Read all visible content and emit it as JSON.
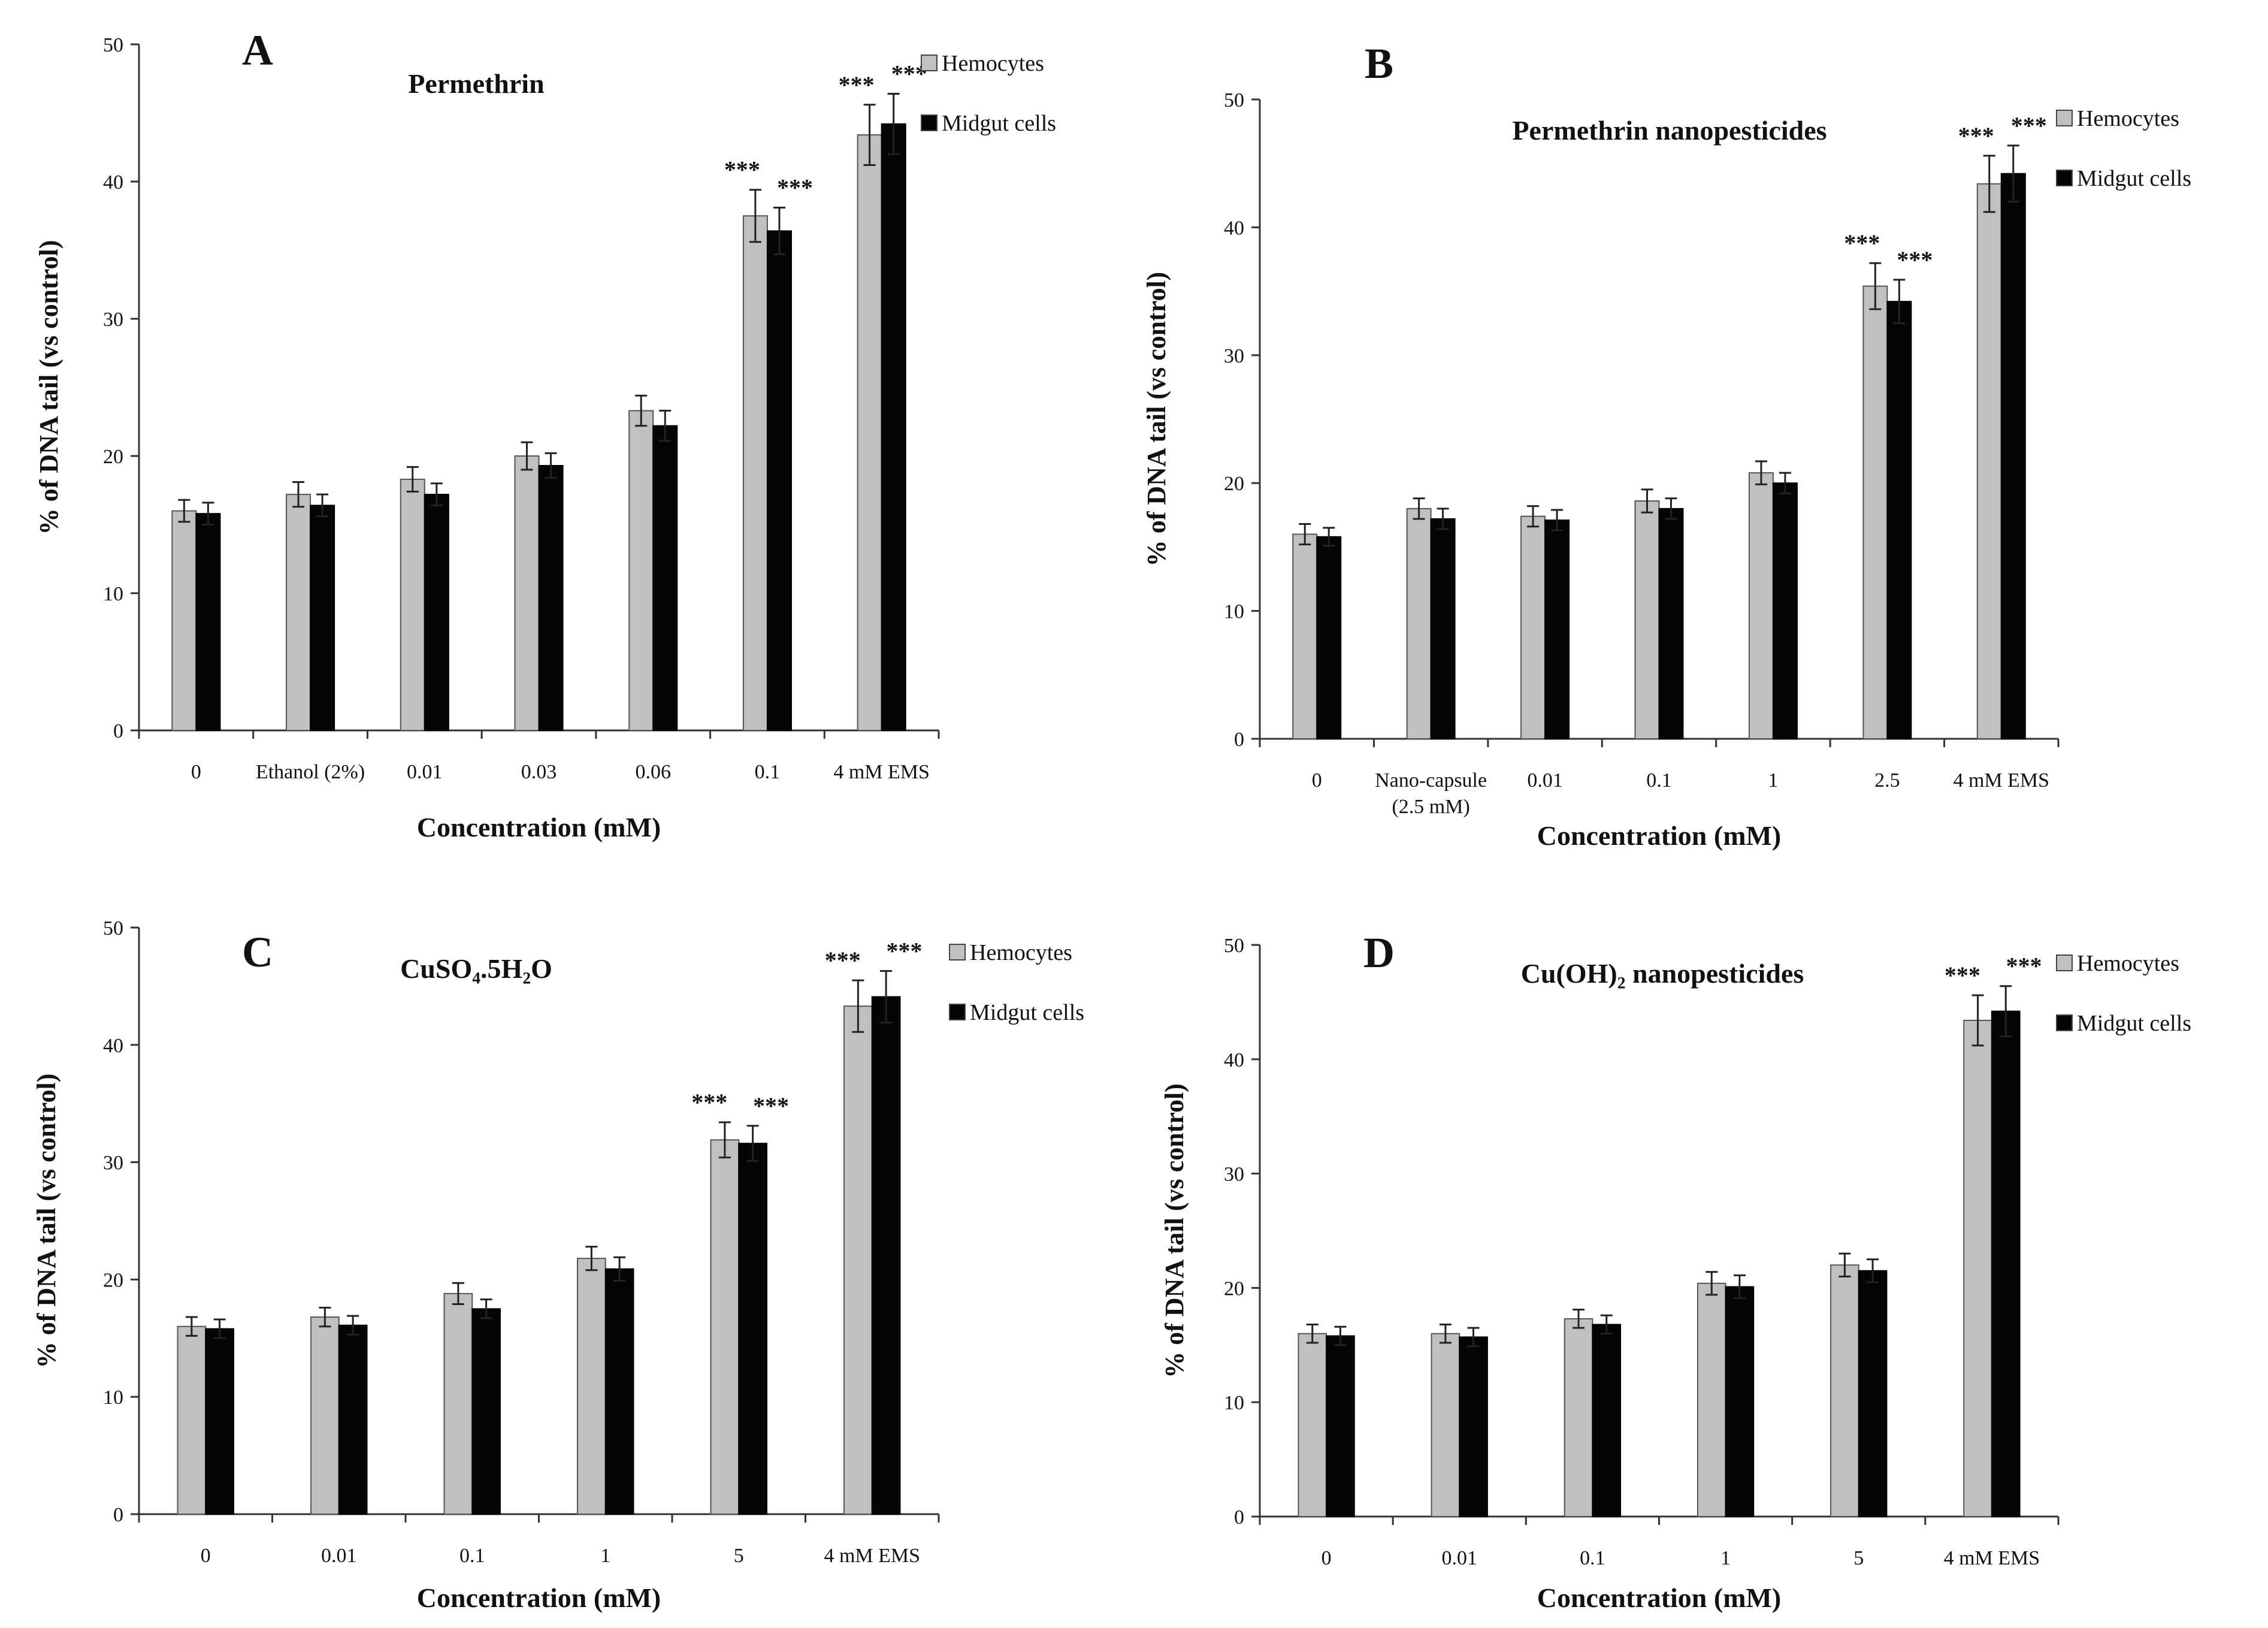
{
  "figure": {
    "legend_series": [
      "Hemocytes",
      "Midgut cells"
    ],
    "colors": {
      "hemocytes": "#c0c0c0",
      "midgut": "#050505",
      "axis": "#333333"
    }
  },
  "chart_data": [
    {
      "panel": "A",
      "type": "bar",
      "title": "Permethrin",
      "xlabel": "Concentration (mM)",
      "ylabel": "% of DNA tail (vs control)",
      "ylim": [
        0,
        50
      ],
      "yticks": [
        0,
        10,
        20,
        30,
        40,
        50
      ],
      "categories": [
        [
          "0"
        ],
        [
          "Ethanol (2%)"
        ],
        [
          "0.01"
        ],
        [
          "0.03"
        ],
        [
          "0.06"
        ],
        [
          "0.1"
        ],
        [
          "4 mM EMS"
        ]
      ],
      "series": [
        {
          "name": "Hemocytes",
          "values": [
            16.0,
            17.2,
            18.3,
            20.0,
            23.3,
            37.5,
            43.4
          ],
          "errors": [
            0.8,
            0.9,
            0.9,
            1.0,
            1.1,
            1.9,
            2.2
          ]
        },
        {
          "name": "Midgut cells",
          "values": [
            15.8,
            16.4,
            17.2,
            19.3,
            22.2,
            36.4,
            44.2
          ],
          "errors": [
            0.8,
            0.8,
            0.8,
            0.9,
            1.1,
            1.7,
            2.2
          ]
        }
      ],
      "significance": [
        {
          "index": 5,
          "hemocytes": "***",
          "midgut": "***"
        },
        {
          "index": 6,
          "hemocytes": "***",
          "midgut": "***"
        }
      ],
      "legend": "top-right"
    },
    {
      "panel": "B",
      "type": "bar",
      "title": "Permethrin nanopesticides",
      "xlabel": "Concentration (mM)",
      "ylabel": "% of DNA tail (vs control)",
      "ylim": [
        0,
        50
      ],
      "yticks": [
        0,
        10,
        20,
        30,
        40,
        50
      ],
      "categories": [
        [
          "0"
        ],
        [
          "Nano-capsule",
          "(2.5 mM)"
        ],
        [
          "0.01"
        ],
        [
          "0.1"
        ],
        [
          "1"
        ],
        [
          "2.5"
        ],
        [
          "4 mM EMS"
        ]
      ],
      "series": [
        {
          "name": "Hemocytes",
          "values": [
            16.0,
            18.0,
            17.4,
            18.6,
            20.8,
            35.4,
            43.4
          ],
          "errors": [
            0.8,
            0.8,
            0.8,
            0.9,
            0.9,
            1.8,
            2.2
          ]
        },
        {
          "name": "Midgut cells",
          "values": [
            15.8,
            17.2,
            17.1,
            18.0,
            20.0,
            34.2,
            44.2
          ],
          "errors": [
            0.7,
            0.8,
            0.8,
            0.8,
            0.8,
            1.7,
            2.2
          ]
        }
      ],
      "significance": [
        {
          "index": 5,
          "hemocytes": "***",
          "midgut": "***"
        },
        {
          "index": 6,
          "hemocytes": "***",
          "midgut": "***"
        }
      ],
      "legend": "top-right"
    },
    {
      "panel": "C",
      "type": "bar",
      "title": "CuSO₄.5H₂O",
      "xlabel": "Concentration (mM)",
      "ylabel": "% of DNA tail (vs control)",
      "ylim": [
        0,
        50
      ],
      "yticks": [
        0,
        10,
        20,
        30,
        40,
        50
      ],
      "categories": [
        [
          "0"
        ],
        [
          "0.01"
        ],
        [
          "0.1"
        ],
        [
          "1"
        ],
        [
          "5"
        ],
        [
          "4 mM EMS"
        ]
      ],
      "series": [
        {
          "name": "Hemocytes",
          "values": [
            16.0,
            16.8,
            18.8,
            21.8,
            31.9,
            43.3
          ],
          "errors": [
            0.8,
            0.8,
            0.9,
            1.0,
            1.5,
            2.2
          ]
        },
        {
          "name": "Midgut cells",
          "values": [
            15.8,
            16.1,
            17.5,
            20.9,
            31.6,
            44.1
          ],
          "errors": [
            0.8,
            0.8,
            0.8,
            1.0,
            1.5,
            2.2
          ]
        }
      ],
      "significance": [
        {
          "index": 4,
          "hemocytes": "***",
          "midgut": "***"
        },
        {
          "index": 5,
          "hemocytes": "***",
          "midgut": "***"
        }
      ],
      "legend": "top-right"
    },
    {
      "panel": "D",
      "type": "bar",
      "title": "Cu(OH)₂ nanopesticides",
      "xlabel": "Concentration (mM)",
      "ylabel": "% of DNA tail (vs control)",
      "ylim": [
        0,
        50
      ],
      "yticks": [
        0,
        10,
        20,
        30,
        40,
        50
      ],
      "categories": [
        [
          "0"
        ],
        [
          "0.01"
        ],
        [
          "0.1"
        ],
        [
          "1"
        ],
        [
          "5"
        ],
        [
          "4 mM EMS"
        ]
      ],
      "series": [
        {
          "name": "Hemocytes",
          "values": [
            16.0,
            16.0,
            17.3,
            20.4,
            22.0,
            43.4
          ],
          "errors": [
            0.8,
            0.8,
            0.8,
            1.0,
            1.0,
            2.2
          ]
        },
        {
          "name": "Midgut cells",
          "values": [
            15.8,
            15.7,
            16.8,
            20.1,
            21.5,
            44.2
          ],
          "errors": [
            0.8,
            0.8,
            0.8,
            1.0,
            1.0,
            2.2
          ]
        }
      ],
      "significance": [
        {
          "index": 5,
          "hemocytes": "***",
          "midgut": "***"
        }
      ],
      "legend": "top-right"
    }
  ]
}
